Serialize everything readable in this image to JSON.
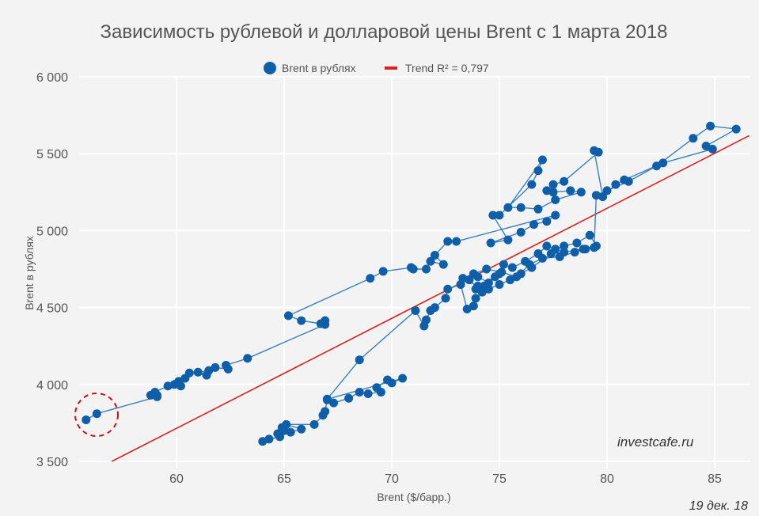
{
  "chart_data": {
    "type": "scatter",
    "title": "Зависимость рублевой и долларовой цены Brent с 1 марта 2018",
    "xlabel": "Brent ($/барр.)",
    "ylabel": "Brent в рублях",
    "xlim": [
      55.5,
      86.6
    ],
    "ylim": [
      3500,
      6000
    ],
    "xticks": [
      60,
      65,
      70,
      75,
      80,
      85
    ],
    "yticks": [
      3500,
      4000,
      4500,
      5000,
      5500,
      6000
    ],
    "ytick_labels": [
      "3 500",
      "4 000",
      "4 500",
      "5 000",
      "5 500",
      "6 000"
    ],
    "grid": true,
    "legend_position": "top-center",
    "series": [
      {
        "name": "Brent в рублях",
        "color": "#0f5fa8",
        "mode": "lines+markers",
        "points": [
          [
            64.0,
            3630
          ],
          [
            64.3,
            3645
          ],
          [
            64.8,
            3660
          ],
          [
            64.7,
            3680
          ],
          [
            65.0,
            3700
          ],
          [
            64.9,
            3720
          ],
          [
            65.3,
            3690
          ],
          [
            65.8,
            3710
          ],
          [
            65.1,
            3740
          ],
          [
            66.4,
            3740
          ],
          [
            66.8,
            3800
          ],
          [
            66.9,
            3825
          ],
          [
            67.0,
            3900
          ],
          [
            67.3,
            3880
          ],
          [
            68.0,
            3910
          ],
          [
            68.5,
            3950
          ],
          [
            68.9,
            3940
          ],
          [
            69.5,
            3950
          ],
          [
            69.3,
            3980
          ],
          [
            69.8,
            4030
          ],
          [
            70.0,
            4010
          ],
          [
            70.5,
            4040
          ],
          [
            67.0,
            3905
          ],
          [
            68.5,
            4160
          ],
          [
            71.1,
            4480
          ],
          [
            71.5,
            4380
          ],
          [
            71.6,
            4420
          ],
          [
            71.8,
            4480
          ],
          [
            72.0,
            4500
          ],
          [
            72.5,
            4560
          ],
          [
            72.6,
            4620
          ],
          [
            73.2,
            4650
          ],
          [
            73.5,
            4490
          ],
          [
            73.8,
            4510
          ],
          [
            73.9,
            4560
          ],
          [
            74.2,
            4600
          ],
          [
            73.6,
            4680
          ],
          [
            74.0,
            4700
          ],
          [
            74.5,
            4660
          ],
          [
            75.0,
            4720
          ],
          [
            74.3,
            4640
          ],
          [
            73.9,
            4620
          ],
          [
            74.8,
            4700
          ],
          [
            75.2,
            4780
          ],
          [
            75.6,
            4760
          ],
          [
            76.2,
            4800
          ],
          [
            76.8,
            4850
          ],
          [
            77.2,
            4900
          ],
          [
            77.6,
            4880
          ],
          [
            78.0,
            4900
          ],
          [
            78.6,
            4920
          ],
          [
            79.2,
            4970
          ],
          [
            79.5,
            4900
          ],
          [
            78.9,
            4880
          ],
          [
            78.0,
            4860
          ],
          [
            77.4,
            4850
          ],
          [
            76.5,
            4760
          ],
          [
            76.0,
            4720
          ],
          [
            75.5,
            4680
          ],
          [
            75.0,
            4650
          ],
          [
            74.5,
            4620
          ],
          [
            74.0,
            4640
          ],
          [
            73.3,
            4690
          ],
          [
            73.8,
            4720
          ],
          [
            74.4,
            4750
          ],
          [
            75.1,
            4730
          ],
          [
            75.8,
            4700
          ],
          [
            76.4,
            4780
          ],
          [
            77.0,
            4820
          ],
          [
            77.8,
            4830
          ],
          [
            78.5,
            4860
          ],
          [
            79.0,
            4880
          ],
          [
            79.4,
            4890
          ],
          [
            79.5,
            5230
          ],
          [
            80.0,
            5260
          ],
          [
            81.0,
            5320
          ],
          [
            82.3,
            5420
          ],
          [
            84.0,
            5600
          ],
          [
            84.8,
            5680
          ],
          [
            86.0,
            5660
          ],
          [
            84.6,
            5550
          ],
          [
            84.9,
            5530
          ],
          [
            82.6,
            5440
          ],
          [
            80.8,
            5330
          ],
          [
            80.4,
            5300
          ],
          [
            79.8,
            5220
          ],
          [
            79.4,
            5520
          ],
          [
            79.6,
            5510
          ],
          [
            78.0,
            5320
          ],
          [
            77.5,
            5300
          ],
          [
            77.2,
            5260
          ],
          [
            77.5,
            5250
          ],
          [
            78.3,
            5260
          ],
          [
            78.8,
            5250
          ],
          [
            77.6,
            5200
          ],
          [
            76.8,
            5140
          ],
          [
            76.0,
            5150
          ],
          [
            75.4,
            5150
          ],
          [
            77.0,
            5460
          ],
          [
            76.8,
            5390
          ],
          [
            76.5,
            5300
          ],
          [
            75.0,
            5100
          ],
          [
            74.7,
            5100
          ],
          [
            75.4,
            4940
          ],
          [
            74.6,
            4920
          ],
          [
            76.0,
            4990
          ],
          [
            76.6,
            5040
          ],
          [
            77.2,
            5060
          ],
          [
            77.6,
            5100
          ],
          [
            73.0,
            4930
          ],
          [
            72.6,
            4930
          ],
          [
            72.0,
            4840
          ],
          [
            72.4,
            4780
          ],
          [
            71.8,
            4800
          ],
          [
            71.6,
            4750
          ],
          [
            71.0,
            4750
          ],
          [
            70.9,
            4760
          ],
          [
            69.6,
            4735
          ],
          [
            69.0,
            4690
          ],
          [
            65.2,
            4447
          ],
          [
            65.8,
            4415
          ],
          [
            66.7,
            4395
          ],
          [
            66.9,
            4415
          ],
          [
            66.9,
            4390
          ],
          [
            63.3,
            4170
          ],
          [
            62.3,
            4125
          ],
          [
            62.4,
            4100
          ],
          [
            61.8,
            4110
          ],
          [
            61.5,
            4090
          ],
          [
            61.0,
            4080
          ],
          [
            61.4,
            4060
          ],
          [
            60.6,
            4075
          ],
          [
            60.4,
            4040
          ],
          [
            60.1,
            4020
          ],
          [
            59.9,
            4000
          ],
          [
            60.2,
            3990
          ],
          [
            59.6,
            3990
          ],
          [
            59.0,
            3950
          ],
          [
            59.1,
            3930
          ],
          [
            58.8,
            3930
          ],
          [
            59.1,
            3920
          ],
          [
            56.3,
            3810
          ],
          [
            55.8,
            3770
          ]
        ]
      },
      {
        "name": "Trend R² = 0,797",
        "color": "#e02020",
        "mode": "line",
        "slope": 71.5,
        "intercept": -575
      }
    ],
    "annotations": [
      "investcafe.ru",
      "19 дек. 18"
    ]
  }
}
